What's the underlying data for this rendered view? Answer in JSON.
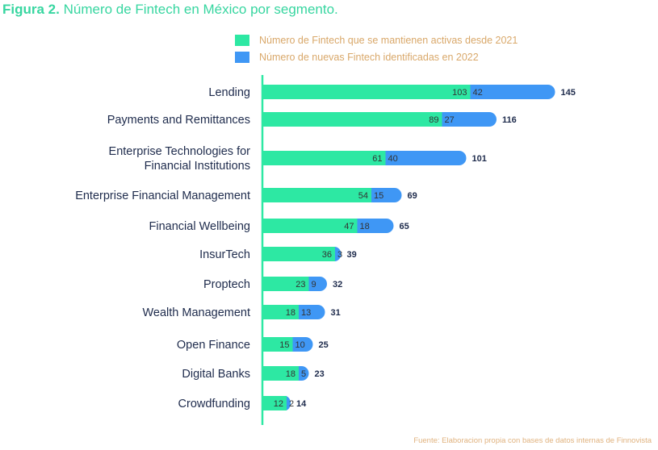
{
  "title": {
    "figure": "Figura 2.",
    "text": "Número de Fintech en México por segmento."
  },
  "legend": [
    {
      "label": "Número de Fintech que se mantienen activas desde 2021",
      "color": "#2de8a3"
    },
    {
      "label": "Número de nuevas Fintech identificadas en 2022",
      "color": "#3f97f5"
    }
  ],
  "source": "Fuente: Elaboracion propia con bases de datos internas de Finnovista",
  "chart_data": {
    "type": "bar",
    "orientation": "horizontal",
    "stacked": true,
    "categories": [
      "Lending",
      "Payments and Remittances",
      "Enterprise Technologies for\nFinancial Institutions",
      "Enterprise Financial Management",
      "Financial Wellbeing",
      "InsurTech",
      "Proptech",
      "Wealth Management",
      "Open Finance",
      "Digital Banks",
      "Crowdfunding"
    ],
    "series": [
      {
        "name": "Número de Fintech que se mantienen activas desde 2021",
        "color": "#2de8a3",
        "values": [
          103,
          89,
          61,
          54,
          47,
          36,
          23,
          18,
          15,
          18,
          12
        ]
      },
      {
        "name": "Número de nuevas Fintech identificadas en 2022",
        "color": "#3f97f5",
        "values": [
          42,
          27,
          40,
          15,
          18,
          3,
          9,
          13,
          10,
          5,
          2
        ]
      }
    ],
    "totals": [
      145,
      116,
      101,
      69,
      65,
      39,
      32,
      31,
      25,
      23,
      14
    ],
    "axis_color": "#2de8a3",
    "grid": false,
    "legend_position": "top"
  }
}
